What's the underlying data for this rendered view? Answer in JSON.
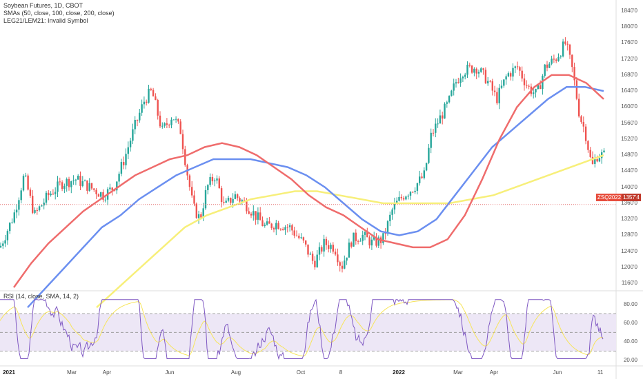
{
  "legend": {
    "title": "Soybean Futures, 1D, CBOT",
    "smas": "SMAs (50, close, 100, close, 200, close)",
    "symbols": "LEG21/LEM21: Invalid Symbol"
  },
  "rsi_legend": "RSI (14, close, SMA, 14, 2)",
  "price_axis": [
    "1840'0",
    "1800'0",
    "1760'0",
    "1720'0",
    "1680'0",
    "1640'0",
    "1600'0",
    "1560'0",
    "1520'0",
    "1480'0",
    "1440'0",
    "1400'0",
    "1360'0",
    "1320'0",
    "1280'0",
    "1240'0",
    "1200'0",
    "1160'0"
  ],
  "rsi_axis": [
    "80.00",
    "60.00",
    "40.00",
    "20.00"
  ],
  "date_axis": [
    "2021",
    "Mar",
    "Apr",
    "Jun",
    "Aug",
    "Oct",
    "8",
    "2022",
    "Mar",
    "Apr",
    "Jun",
    "11"
  ],
  "last_tag": {
    "symbol": "ZSQ2022",
    "price": "1357'4"
  },
  "colors": {
    "up": "#26a69a",
    "down": "#ef5350",
    "sma50": "#ef6c6c",
    "sma100": "#6b8ff0",
    "sma200": "#f7ef7a",
    "rsi": "#7e57c2",
    "rsi_ma": "#f7e55a",
    "band": "#ede7f6"
  },
  "chart_data": {
    "type": "line",
    "title": "Soybean Futures, 1D, CBOT",
    "ylim": [
      1140,
      1850
    ],
    "series": [
      {
        "name": "SMA 50",
        "values": [
          1150,
          1210,
          1260,
          1300,
          1340,
          1370,
          1400,
          1430,
          1450,
          1470,
          1480,
          1500,
          1510,
          1500,
          1480,
          1450,
          1420,
          1380,
          1350,
          1330,
          1300,
          1270,
          1260,
          1250,
          1250,
          1270,
          1330,
          1420,
          1520,
          1600,
          1650,
          1680,
          1680,
          1660,
          1620
        ]
      },
      {
        "name": "SMA 100",
        "values": [
          1100,
          1150,
          1200,
          1250,
          1300,
          1330,
          1370,
          1400,
          1430,
          1450,
          1470,
          1470,
          1470,
          1460,
          1450,
          1430,
          1400,
          1360,
          1320,
          1290,
          1280,
          1290,
          1320,
          1380,
          1440,
          1500,
          1540,
          1580,
          1620,
          1650,
          1650,
          1640
        ]
      },
      {
        "name": "SMA 200",
        "values": [
          1100,
          1150,
          1200,
          1250,
          1300,
          1330,
          1350,
          1370,
          1380,
          1390,
          1390,
          1380,
          1370,
          1360,
          1360,
          1360,
          1360,
          1370,
          1380,
          1400,
          1420,
          1440,
          1460,
          1480
        ]
      }
    ]
  }
}
